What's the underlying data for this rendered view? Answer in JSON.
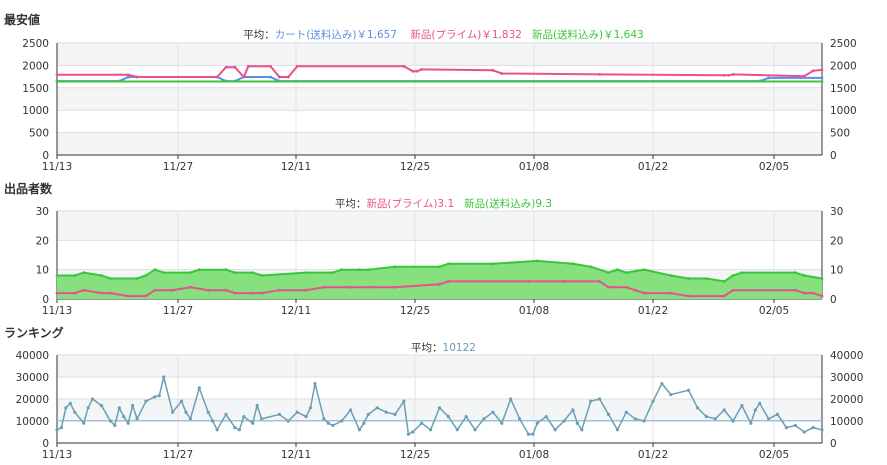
{
  "colors": {
    "cart": "#5b8fe0",
    "prime": "#e8518e",
    "shipping": "#3cc43c",
    "shipping_fill": "#86e07e",
    "ranking": "#6a9fb5",
    "grid": "#dddddd",
    "band": "#f4f5f7"
  },
  "sections": {
    "price_title": "最安値",
    "sellers_title": "出品者数",
    "ranking_title": "ランキング"
  },
  "legends": {
    "price": {
      "prefix": "平均：",
      "cart": "カート(送料込み)￥1,657",
      "prime": "新品(プライム)￥1,832",
      "shipping": "新品(送料込み)￥1,643"
    },
    "sellers": {
      "prefix": "平均：",
      "prime": "新品(プライム)3.1",
      "shipping": "新品(送料込み)9.3"
    },
    "ranking": {
      "prefix": "平均：",
      "value": "10122"
    }
  },
  "chart_data": [
    {
      "id": "price",
      "type": "line",
      "title": "最安値",
      "x_ticks": [
        "11/13",
        "11/27",
        "12/11",
        "12/25",
        "01/08",
        "01/22",
        "02/05"
      ],
      "x_range_days": [
        0,
        86
      ],
      "ylim": [
        0,
        2500
      ],
      "y_ticks": [
        0,
        500,
        1000,
        1500,
        2000,
        2500
      ],
      "series": [
        {
          "name": "カート(送料込み)",
          "color_key": "cart",
          "points": [
            [
              0,
              1650
            ],
            [
              7,
              1650
            ],
            [
              8,
              1740
            ],
            [
              18,
              1740
            ],
            [
              19,
              1650
            ],
            [
              20,
              1650
            ],
            [
              21,
              1740
            ],
            [
              24,
              1740
            ],
            [
              25,
              1650
            ],
            [
              79,
              1650
            ],
            [
              80,
              1720
            ],
            [
              86,
              1720
            ]
          ]
        },
        {
          "name": "新品(プライム)",
          "color_key": "prime",
          "points": [
            [
              0,
              1790
            ],
            [
              8,
              1790
            ],
            [
              9,
              1740
            ],
            [
              18,
              1740
            ],
            [
              19,
              1960
            ],
            [
              20,
              1960
            ],
            [
              21,
              1740
            ],
            [
              21.5,
              1980
            ],
            [
              24,
              1980
            ],
            [
              25,
              1740
            ],
            [
              26,
              1740
            ],
            [
              27,
              1980
            ],
            [
              39,
              1980
            ],
            [
              40,
              1870
            ],
            [
              40.5,
              1870
            ],
            [
              41,
              1910
            ],
            [
              49,
              1890
            ],
            [
              50,
              1820
            ],
            [
              61,
              1800
            ],
            [
              75,
              1780
            ],
            [
              75.5,
              1780
            ],
            [
              76,
              1800
            ],
            [
              84,
              1760
            ],
            [
              85,
              1880
            ],
            [
              86,
              1900
            ]
          ]
        },
        {
          "name": "新品(送料込み)",
          "color_key": "shipping",
          "points": [
            [
              0,
              1640
            ],
            [
              86,
              1640
            ]
          ]
        }
      ]
    },
    {
      "id": "sellers",
      "type": "area",
      "title": "出品者数",
      "x_ticks": [
        "11/13",
        "11/27",
        "12/11",
        "12/25",
        "01/08",
        "01/22",
        "02/05"
      ],
      "x_range_days": [
        0,
        86
      ],
      "ylim": [
        0,
        30
      ],
      "y_ticks": [
        0,
        10,
        20,
        30
      ],
      "series": [
        {
          "name": "新品(送料込み)",
          "color_key": "shipping",
          "points": [
            [
              0,
              8
            ],
            [
              2,
              8
            ],
            [
              3,
              9
            ],
            [
              5,
              8
            ],
            [
              6,
              7
            ],
            [
              9,
              7
            ],
            [
              10,
              8
            ],
            [
              11,
              10
            ],
            [
              12,
              9
            ],
            [
              15,
              9
            ],
            [
              16,
              10
            ],
            [
              19,
              10
            ],
            [
              20,
              9
            ],
            [
              22,
              9
            ],
            [
              23,
              8
            ],
            [
              28,
              9
            ],
            [
              31,
              9
            ],
            [
              32,
              10
            ],
            [
              34,
              10
            ],
            [
              35,
              10
            ],
            [
              38,
              11
            ],
            [
              43,
              11
            ],
            [
              44,
              12
            ],
            [
              49,
              12
            ],
            [
              54,
              13
            ],
            [
              58,
              12
            ],
            [
              60,
              11
            ],
            [
              62,
              9
            ],
            [
              63,
              10
            ],
            [
              64,
              9
            ],
            [
              66,
              10
            ],
            [
              69,
              8
            ],
            [
              71,
              7
            ],
            [
              73,
              7
            ],
            [
              75,
              6
            ],
            [
              76,
              8
            ],
            [
              77,
              9
            ],
            [
              83,
              9
            ],
            [
              84,
              8
            ],
            [
              86,
              7
            ]
          ]
        },
        {
          "name": "新品(プライム)",
          "color_key": "prime",
          "points": [
            [
              0,
              2
            ],
            [
              2,
              2
            ],
            [
              3,
              3
            ],
            [
              5,
              2
            ],
            [
              6,
              2
            ],
            [
              8,
              1
            ],
            [
              10,
              1
            ],
            [
              11,
              3
            ],
            [
              13,
              3
            ],
            [
              15,
              4
            ],
            [
              17,
              3
            ],
            [
              19,
              3
            ],
            [
              20,
              2
            ],
            [
              22,
              2
            ],
            [
              23,
              2
            ],
            [
              25,
              3
            ],
            [
              28,
              3
            ],
            [
              30,
              4
            ],
            [
              33,
              4
            ],
            [
              35,
              4
            ],
            [
              38,
              4
            ],
            [
              43,
              5
            ],
            [
              44,
              6
            ],
            [
              53,
              6
            ],
            [
              57,
              6
            ],
            [
              61,
              6
            ],
            [
              62,
              4
            ],
            [
              64,
              4
            ],
            [
              65,
              3
            ],
            [
              66,
              2
            ],
            [
              69,
              2
            ],
            [
              71,
              1
            ],
            [
              75,
              1
            ],
            [
              76,
              3
            ],
            [
              83,
              3
            ],
            [
              84,
              2
            ],
            [
              85,
              2
            ],
            [
              86,
              1
            ]
          ]
        }
      ]
    },
    {
      "id": "ranking",
      "type": "line",
      "title": "ランキング",
      "x_ticks": [
        "11/13",
        "11/27",
        "12/11",
        "12/25",
        "01/08",
        "01/22",
        "02/05"
      ],
      "x_range_days": [
        0,
        86
      ],
      "ylim": [
        0,
        40000
      ],
      "y_ticks": [
        0,
        10000,
        20000,
        30000,
        40000
      ],
      "average": 10122,
      "series": [
        {
          "name": "ランキング",
          "color_key": "ranking",
          "points": [
            [
              0,
              6000
            ],
            [
              0.5,
              7000
            ],
            [
              1,
              16000
            ],
            [
              1.5,
              18000
            ],
            [
              2,
              14000
            ],
            [
              3,
              9000
            ],
            [
              3.5,
              16000
            ],
            [
              4,
              20000
            ],
            [
              5,
              17000
            ],
            [
              6,
              10000
            ],
            [
              6.5,
              8000
            ],
            [
              7,
              16000
            ],
            [
              7.5,
              12000
            ],
            [
              8,
              9000
            ],
            [
              8.5,
              17000
            ],
            [
              9,
              11000
            ],
            [
              10,
              19000
            ],
            [
              11,
              21000
            ],
            [
              11.5,
              21500
            ],
            [
              12,
              30000
            ],
            [
              13,
              14000
            ],
            [
              14,
              19000
            ],
            [
              14.5,
              14000
            ],
            [
              15,
              11000
            ],
            [
              16,
              25000
            ],
            [
              17,
              14000
            ],
            [
              17.5,
              10000
            ],
            [
              18,
              6000
            ],
            [
              19,
              13000
            ],
            [
              20,
              7000
            ],
            [
              20.5,
              6000
            ],
            [
              21,
              12000
            ],
            [
              22,
              9000
            ],
            [
              22.5,
              17000
            ],
            [
              23,
              11000
            ],
            [
              25,
              13000
            ],
            [
              26,
              10000
            ],
            [
              27,
              14000
            ],
            [
              28,
              12000
            ],
            [
              28.5,
              16000
            ],
            [
              29,
              27000
            ],
            [
              30,
              11000
            ],
            [
              30.5,
              9000
            ],
            [
              31,
              8000
            ],
            [
              32,
              10000
            ],
            [
              33,
              15000
            ],
            [
              34,
              6000
            ],
            [
              34.5,
              9000
            ],
            [
              35,
              13000
            ],
            [
              36,
              16000
            ],
            [
              37,
              14000
            ],
            [
              38,
              13000
            ],
            [
              39,
              19000
            ],
            [
              39.5,
              4000
            ],
            [
              40,
              5000
            ],
            [
              41,
              9000
            ],
            [
              42,
              6000
            ],
            [
              43,
              16000
            ],
            [
              44,
              12000
            ],
            [
              45,
              6000
            ],
            [
              46,
              12000
            ],
            [
              47,
              6000
            ],
            [
              48,
              11000
            ],
            [
              49,
              14000
            ],
            [
              50,
              9000
            ],
            [
              51,
              20000
            ],
            [
              52,
              11000
            ],
            [
              53,
              4000
            ],
            [
              53.5,
              4000
            ],
            [
              54,
              9000
            ],
            [
              55,
              12000
            ],
            [
              56,
              6000
            ],
            [
              57,
              10000
            ],
            [
              58,
              15000
            ],
            [
              58.5,
              9000
            ],
            [
              59,
              6000
            ],
            [
              60,
              19000
            ],
            [
              61,
              20000
            ],
            [
              62,
              13000
            ],
            [
              63,
              6000
            ],
            [
              64,
              14000
            ],
            [
              65,
              11000
            ],
            [
              66,
              10000
            ],
            [
              67,
              19000
            ],
            [
              68,
              27000
            ],
            [
              69,
              22000
            ],
            [
              71,
              24000
            ],
            [
              72,
              16000
            ],
            [
              73,
              12000
            ],
            [
              74,
              11000
            ],
            [
              75,
              15000
            ],
            [
              76,
              10000
            ],
            [
              77,
              17000
            ],
            [
              78,
              9000
            ],
            [
              78.5,
              15000
            ],
            [
              79,
              18000
            ],
            [
              80,
              11000
            ],
            [
              81,
              13000
            ],
            [
              82,
              7000
            ],
            [
              83,
              8000
            ],
            [
              84,
              5000
            ],
            [
              85,
              7000
            ],
            [
              86,
              6000
            ]
          ]
        }
      ]
    }
  ]
}
